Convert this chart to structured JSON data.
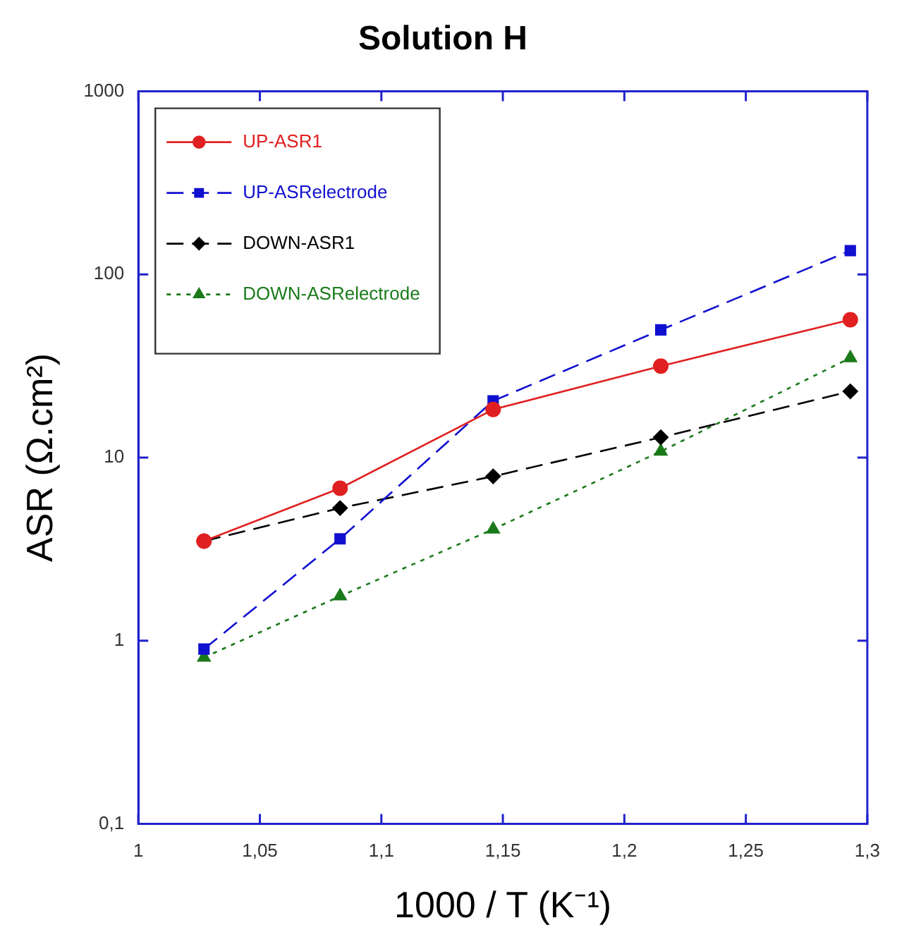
{
  "chart_data": {
    "type": "line",
    "title": "Solution H",
    "xlabel": "1000 / T (K⁻¹)",
    "ylabel": "ASR (Ω.cm²)",
    "log": "y",
    "grid": false,
    "legend": "top left",
    "xlim": [
      1,
      1.3
    ],
    "xticks": [
      1,
      {
        "value": 1.05,
        "label": "1,05"
      },
      {
        "value": 1.1,
        "label": "1,1"
      },
      {
        "value": 1.15,
        "label": "1,15"
      },
      {
        "value": 1.2,
        "label": "1,2"
      },
      {
        "value": 1.25,
        "label": "1,25"
      },
      {
        "value": 1.3,
        "label": "1,3"
      }
    ],
    "ylim": [
      0.1,
      1000
    ],
    "yticks": [
      {
        "value": 0.1,
        "label": "0,1"
      },
      1,
      10,
      100,
      1000
    ],
    "x": [
      1.027,
      1.083,
      1.146,
      1.215,
      1.293
    ],
    "series": [
      {
        "name": "UP-ASR1",
        "color": "#e02020",
        "values": [
          3.5,
          6.8,
          18.3,
          31.6,
          56.6
        ],
        "marker": "circle",
        "line_style": "solid"
      },
      {
        "name": "UP-ASRelectrode",
        "color": "#1010d0",
        "values": [
          0.9,
          3.6,
          20.4,
          49.8,
          135
        ],
        "marker": "square",
        "line_style": "dashed"
      },
      {
        "name": "DOWN-ASR1",
        "color": "#000000",
        "values": [
          3.5,
          5.3,
          7.9,
          12.9,
          23
        ],
        "marker": "diamond",
        "line_style": "dashed"
      },
      {
        "name": "DOWN-ASRelectrode",
        "color": "#1a7a1a",
        "values": [
          0.81,
          1.75,
          4.06,
          10.8,
          35
        ],
        "marker": "triangle",
        "line_style": "dotted"
      }
    ]
  }
}
